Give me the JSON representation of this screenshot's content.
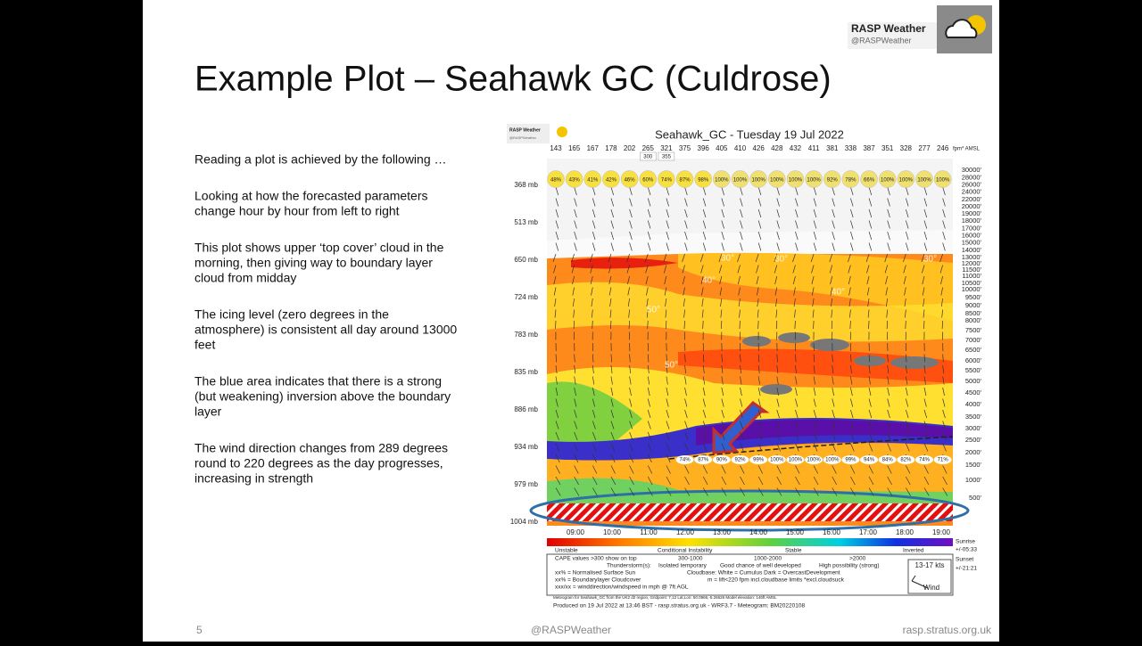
{
  "logo": {
    "name": "RASP Weather",
    "handle": "@RASPWeather"
  },
  "title": "Example Plot – Seahawk GC (Culdrose)",
  "paragraphs": [
    [
      "Reading a plot is achieved by the following …"
    ],
    [
      "Looking at how the forecasted parameters",
      "change hour by hour from left to right"
    ],
    [
      "This plot shows upper ‘top cover’ cloud in the",
      "morning, then giving way to boundary layer",
      "cloud from midday"
    ],
    [
      "The icing level (zero degrees in the",
      "atmosphere) is consistent all day around 13000",
      "feet"
    ],
    [
      "The blue area indicates that there is a strong",
      "(but weakening) inversion above the boundary",
      "layer"
    ],
    [
      "The wind direction changes from 289 degrees",
      "round to 220 degrees as the day progresses,",
      "increasing in strength"
    ]
  ],
  "footer": {
    "page": "5",
    "center": "@RASPWeather",
    "right": "rasp.stratus.org.uk"
  },
  "meteogram": {
    "logo": {
      "name": "RASP Weather",
      "handle": "@RASPWeather"
    },
    "title": "Seahawk_GC - Tuesday 19 Jul 2022",
    "top_values": [
      "143",
      "165",
      "167",
      "178",
      "202",
      "265",
      "321",
      "375",
      "396",
      "405",
      "410",
      "426",
      "428",
      "432",
      "411",
      "381",
      "338",
      "387",
      "351",
      "328",
      "277",
      "246"
    ],
    "top_unit": "fpm* AMSL",
    "top_sub": [
      "300",
      "355"
    ],
    "cloud_top": [
      "48%",
      "43%",
      "41%",
      "42%",
      "46%",
      "60%",
      "74%",
      "87%",
      "98%",
      "100%",
      "100%",
      "100%",
      "100%",
      "100%",
      "100%",
      "92%",
      "78%",
      "66%",
      "100%",
      "100%",
      "100%",
      "100%"
    ],
    "pressure_labels": [
      "368 mb",
      "513 mb",
      "650 mb",
      "724 mb",
      "783 mb",
      "835 mb",
      "886 mb",
      "934 mb",
      "979 mb",
      "1004 mb"
    ],
    "altitude_labels": [
      "500'",
      "1000'",
      "1500'",
      "2000'",
      "2500'",
      "3000'",
      "3500'",
      "4000'",
      "4500'",
      "5000'",
      "5500'",
      "6000'",
      "6500'",
      "7000'",
      "7500'",
      "8000'",
      "8500'",
      "9000'",
      "9500'",
      "10000'",
      "10500'",
      "11000'",
      "11500'",
      "12000'",
      "13000'",
      "14000'",
      "15000'",
      "16000'",
      "17000'",
      "18000'",
      "19000'",
      "20000'",
      "22000'",
      "24000'",
      "26000'",
      "28000'",
      "30000'"
    ],
    "temperature_labels": [
      "30°",
      "30°",
      "30°",
      "40°",
      "40°",
      "50°",
      "50°"
    ],
    "bottom_cloud": [
      "74%",
      "87%",
      "90%",
      "92%",
      "99%",
      "100%",
      "100%",
      "100%",
      "100%",
      "99%",
      "94%",
      "84%",
      "82%",
      "74%",
      "71%"
    ],
    "times": [
      "09:00",
      "10:00",
      "11:00",
      "12:00",
      "13:00",
      "14:00",
      "15:00",
      "16:00",
      "17:00",
      "18:00",
      "19:00"
    ],
    "scale_labels": [
      "Unstable",
      "Conditional Instability",
      "Stable",
      "Inverted"
    ],
    "sun": [
      "Sunrise",
      "+/-05:33",
      "Sunset",
      "+/-21:21"
    ],
    "legend_rows": [
      [
        "CAPE values >300 show on top",
        "300-1000",
        "1000-2000",
        ">2000"
      ],
      [
        "Thunderstorm(s):",
        "Isolated temporary",
        "Good chance of well developed",
        "High possibility (strong)"
      ],
      [
        "xx% = Normalised Surface Sun",
        "Cloudbase: White = Cumulus   Dark = OvercastDevelopment"
      ],
      [
        "xx% = Boundarylayer Cloudcover",
        "m = lift<220 fpm incl.cloudbase limits *excl.cloudsuck"
      ],
      [
        "xxx/xx = winddirection/windspeed in mph @ 7ft AGL"
      ]
    ],
    "wind_box": [
      "13-17 kts",
      "Wind"
    ],
    "meta_line": "Meteogram for Seahawk_GC from the UK2 d2 region, Gridpoint: 7,12 Lat,Lon: 50.0966,-5.26626 Model elevation: 146ft AMSL",
    "produced": "Produced on 19 Jul 2022 at 13:46 BST - rasp.stratus.org.uk - WRF3.7 - Meteogram: BM20220108"
  }
}
